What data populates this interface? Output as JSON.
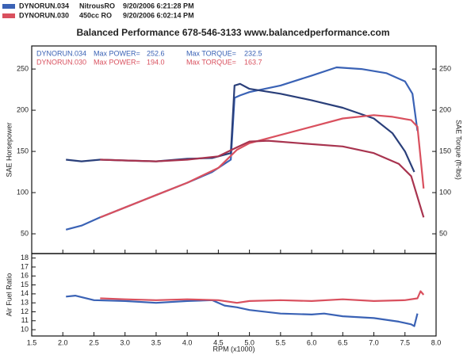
{
  "legend": [
    {
      "name": "DYNORUN.034",
      "note": "NitrousRO",
      "date": "9/20/2006 6:21:28 PM",
      "color": "#3a62b5"
    },
    {
      "name": "DYNORUN.030",
      "note": "450cc  RO",
      "date": "9/20/2006 6:02:14 PM",
      "color": "#d9505e"
    }
  ],
  "chart_data": [
    {
      "type": "line",
      "title": "Balanced Performance 678-546-3133 www.balancedperformance.com",
      "ylabel": "SAE Horsepower",
      "y2label": "SAE Torque (ft-lbs)",
      "xlim": [
        1.5,
        8.0
      ],
      "xticks": [
        1.5,
        2,
        2.5,
        3,
        3.5,
        4,
        4.5,
        5,
        5.5,
        6,
        6.5,
        7,
        7.5,
        8
      ],
      "ylim": [
        26,
        278
      ],
      "yticks": [
        50,
        100,
        150,
        200,
        250
      ],
      "y2lim": [
        26,
        278
      ],
      "y2ticks": [
        50,
        100,
        150,
        200,
        250
      ],
      "stats": [
        {
          "name": "DYNORUN.034",
          "power_label": "Max POWER=",
          "power": 252.6,
          "torque_label": "Max TORQUE=",
          "torque": 232.5,
          "color": "#3a62b5"
        },
        {
          "name": "DYNORUN.030",
          "power_label": "Max POWER=",
          "power": {
            "value": 194,
            "label": "194.0"
          },
          "torque_label": "Max TORQUE=",
          "torque": 163.7,
          "color": "#d9505e"
        }
      ],
      "series": [
        {
          "color": "#3a62b5",
          "x": [
            2.05,
            2.3,
            2.6,
            3.0,
            3.5,
            4.0,
            4.4,
            4.7,
            4.76,
            4.85,
            5.0,
            5.5,
            6.0,
            6.4,
            6.8,
            7.2,
            7.5,
            7.62,
            7.7
          ],
          "values": [
            55,
            60,
            70,
            82,
            97,
            112,
            125,
            140,
            215,
            218,
            222,
            230,
            242,
            252,
            250,
            245,
            235,
            220,
            175
          ]
        },
        {
          "color": "#2a3f7a",
          "axis": "y2",
          "x": [
            2.05,
            2.3,
            2.6,
            3.0,
            3.5,
            4.0,
            4.4,
            4.7,
            4.76,
            4.85,
            5.0,
            5.5,
            6.0,
            6.5,
            7.0,
            7.3,
            7.5,
            7.65
          ],
          "values": [
            140,
            138,
            140,
            139,
            138,
            141,
            142,
            148,
            230,
            232,
            226,
            220,
            212,
            203,
            190,
            172,
            150,
            125
          ]
        },
        {
          "color": "#d9505e",
          "x": [
            2.6,
            3.0,
            3.5,
            4.0,
            4.5,
            4.8,
            5.0,
            5.5,
            6.0,
            6.5,
            7.0,
            7.3,
            7.6,
            7.7,
            7.8
          ],
          "values": [
            70,
            82,
            97,
            112,
            130,
            152,
            160,
            170,
            180,
            190,
            194,
            192,
            188,
            180,
            105
          ]
        },
        {
          "color": "#a8344f",
          "axis": "y2",
          "x": [
            2.6,
            3.0,
            3.5,
            4.0,
            4.5,
            4.8,
            5.0,
            5.3,
            5.8,
            6.5,
            7.0,
            7.4,
            7.6,
            7.8
          ],
          "values": [
            140,
            139,
            138,
            140,
            144,
            155,
            162,
            163,
            160,
            156,
            148,
            135,
            120,
            70
          ]
        }
      ]
    },
    {
      "type": "line",
      "ylabel": "Air Fuel Ratio",
      "xlabel": "RPM (x1000)",
      "xlim": [
        1.5,
        8.0
      ],
      "xticks": [
        1.5,
        {
          "value": 2,
          "label": "2.0"
        },
        2.5,
        {
          "value": 3,
          "label": "3.0"
        },
        3.5,
        {
          "value": 4,
          "label": "4.0"
        },
        4.5,
        {
          "value": 5,
          "label": "5.0"
        },
        5.5,
        {
          "value": 6,
          "label": "6.0"
        },
        6.5,
        {
          "value": 7,
          "label": "7.0"
        },
        7.5,
        {
          "value": 8,
          "label": "8.0"
        }
      ],
      "ylim": [
        9.3,
        18.5
      ],
      "yticks": [
        10,
        11,
        12,
        13,
        14,
        15,
        16,
        17,
        18
      ],
      "series": [
        {
          "color": "#3a62b5",
          "x": [
            2.05,
            2.2,
            2.5,
            3.0,
            3.5,
            4.0,
            4.4,
            4.6,
            4.8,
            5.0,
            5.5,
            6.0,
            6.2,
            6.5,
            7.0,
            7.4,
            7.6,
            7.65,
            7.7
          ],
          "values": [
            13.7,
            13.8,
            13.3,
            13.2,
            13.0,
            13.2,
            13.3,
            12.7,
            12.5,
            12.2,
            11.8,
            11.7,
            11.8,
            11.5,
            11.3,
            10.9,
            10.6,
            10.4,
            11.8
          ]
        },
        {
          "color": "#d9505e",
          "x": [
            2.6,
            3.0,
            3.5,
            4.0,
            4.5,
            4.8,
            5.0,
            5.5,
            6.0,
            6.5,
            7.0,
            7.5,
            7.7,
            7.75,
            7.8
          ],
          "values": [
            13.5,
            13.4,
            13.3,
            13.4,
            13.3,
            13.0,
            13.2,
            13.3,
            13.2,
            13.4,
            13.2,
            13.3,
            13.5,
            14.3,
            13.9
          ]
        }
      ]
    }
  ]
}
